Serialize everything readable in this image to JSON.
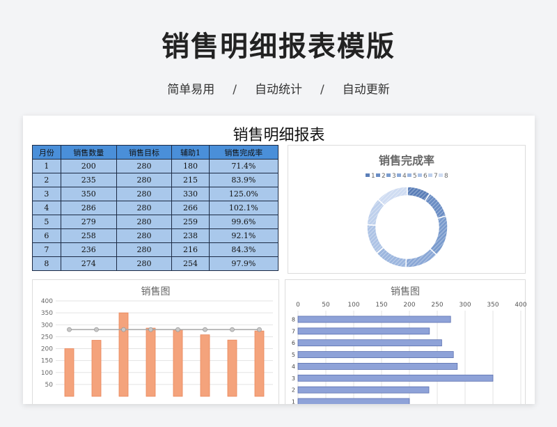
{
  "header": {
    "title": "销售明细报表模版",
    "tags": [
      "简单易用",
      "自动统计",
      "自动更新"
    ],
    "separator": "/"
  },
  "sheet": {
    "title": "销售明细报表",
    "columns": [
      "月份",
      "销售数量",
      "销售目标",
      "辅助1",
      "销售完成率"
    ],
    "rows": [
      [
        "1",
        "200",
        "280",
        "180",
        "71.4%"
      ],
      [
        "2",
        "235",
        "280",
        "215",
        "83.9%"
      ],
      [
        "3",
        "350",
        "280",
        "330",
        "125.0%"
      ],
      [
        "4",
        "286",
        "280",
        "266",
        "102.1%"
      ],
      [
        "5",
        "279",
        "280",
        "259",
        "99.6%"
      ],
      [
        "6",
        "258",
        "280",
        "238",
        "92.1%"
      ],
      [
        "7",
        "236",
        "280",
        "216",
        "84.3%"
      ],
      [
        "8",
        "274",
        "280",
        "254",
        "97.9%"
      ]
    ]
  },
  "chart_data": [
    {
      "type": "pie",
      "title": "销售完成率",
      "categories": [
        "1",
        "2",
        "3",
        "4",
        "5",
        "6",
        "7",
        "8"
      ],
      "values": [
        200,
        235,
        350,
        286,
        279,
        258,
        236,
        274
      ],
      "legend": "top"
    },
    {
      "type": "bar",
      "title": "销售图",
      "categories": [
        "1",
        "2",
        "3",
        "4",
        "5",
        "6",
        "7",
        "8"
      ],
      "series": [
        {
          "values": [
            200,
            235,
            350,
            286,
            279,
            258,
            236,
            274
          ]
        },
        {
          "type": "line",
          "values": [
            280,
            280,
            280,
            280,
            280,
            280,
            280,
            280
          ]
        }
      ],
      "yticks": [
        "50",
        "100",
        "150",
        "200",
        "250",
        "300",
        "350",
        "400"
      ],
      "ylim": [
        0,
        400
      ],
      "grid": true
    },
    {
      "type": "bar",
      "orientation": "horizontal",
      "title": "销售图",
      "categories": [
        "1",
        "2",
        "3",
        "4",
        "5",
        "6",
        "7",
        "8"
      ],
      "values": [
        200,
        235,
        350,
        286,
        279,
        258,
        236,
        274
      ],
      "xticks": [
        "0",
        "50",
        "100",
        "150",
        "200",
        "250",
        "300",
        "350",
        "400"
      ],
      "xlim": [
        0,
        400
      ],
      "grid": true
    }
  ],
  "colors": {
    "header_cell": "#4a8fd9",
    "body_cell": "#a9c8eb",
    "bar_orange": "#f4a37c",
    "bar_blue": "#8ea2d8",
    "target_line": "#a6a6a6"
  }
}
